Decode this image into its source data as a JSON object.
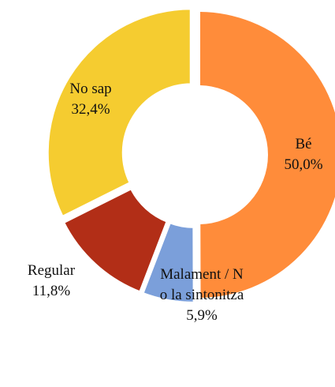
{
  "chart_data": {
    "type": "donut",
    "categories": [
      "Bé",
      "Malament / No la sintonitza",
      "Regular",
      "No sap"
    ],
    "values": [
      50.0,
      5.9,
      11.8,
      32.4
    ],
    "value_labels": [
      "50,0%",
      "5,9%",
      "11,8%",
      "32,4%"
    ],
    "colors": [
      "#FF8C3A",
      "#7B9FDA",
      "#B22E17",
      "#F5CC30"
    ]
  }
}
